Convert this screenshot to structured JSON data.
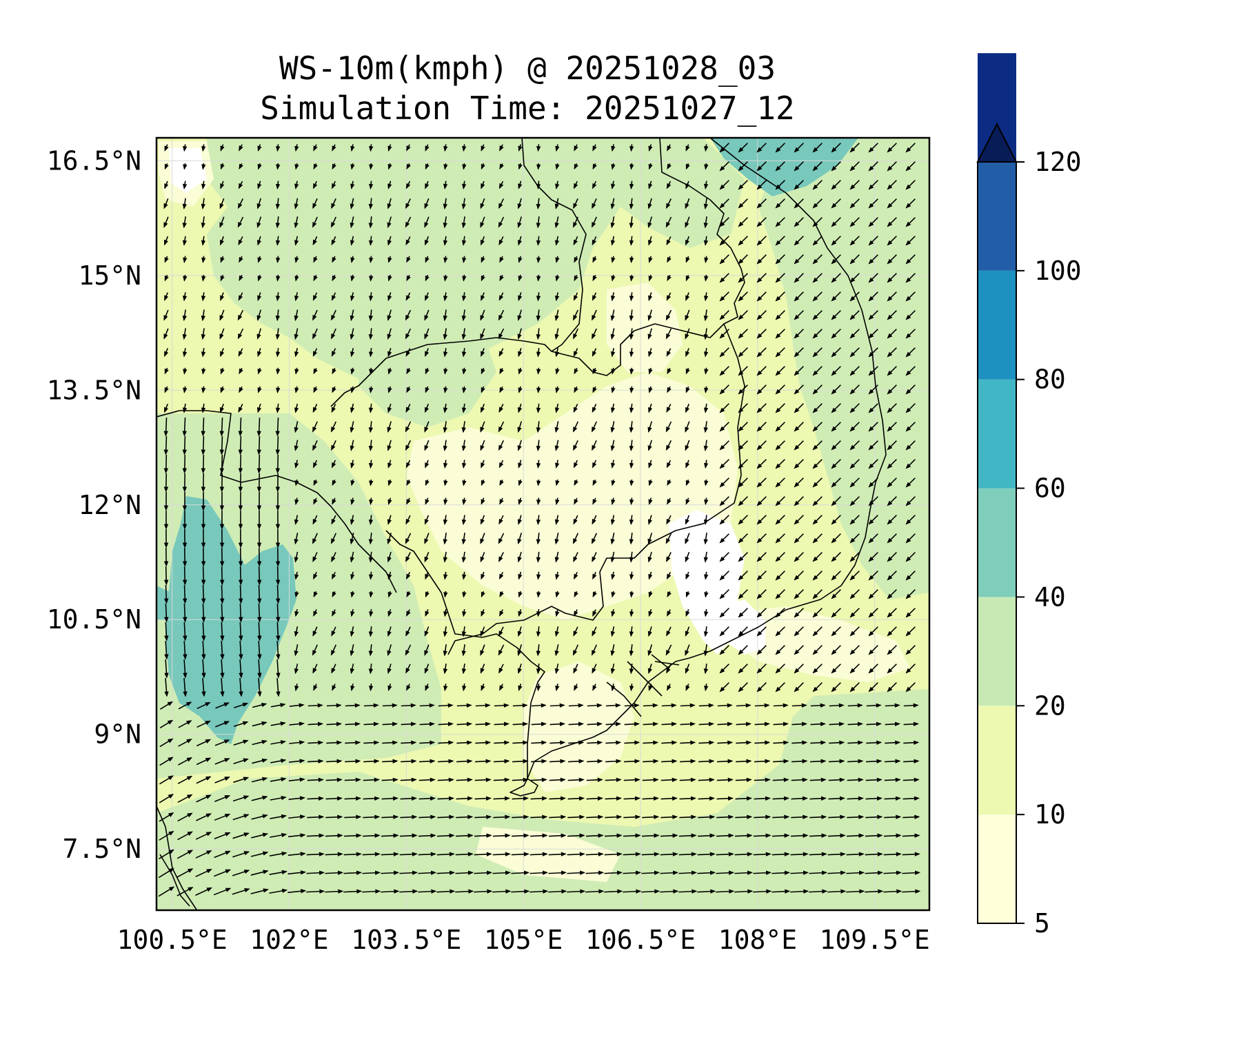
{
  "title": {
    "line1": "WS-10m(kmph) @ 20251028_03",
    "line2": "Simulation Time: 20251027_12"
  },
  "map": {
    "lon_range": [
      100.3,
      110.2
    ],
    "lat_range": [
      6.7,
      16.8
    ],
    "lon_ticks": [
      "100.5°E",
      "102°E",
      "103.5°E",
      "105°E",
      "106.5°E",
      "108°E",
      "109.5°E"
    ],
    "lon_tick_values": [
      100.5,
      102,
      103.5,
      105,
      106.5,
      108,
      109.5
    ],
    "lat_ticks": [
      "16.5°N",
      "15°N",
      "13.5°N",
      "12°N",
      "10.5°N",
      "9°N",
      "7.5°N"
    ],
    "lat_tick_values": [
      16.5,
      15,
      13.5,
      12,
      10.5,
      9,
      7.5
    ],
    "gridlines": true
  },
  "colorbar": {
    "levels": [
      "5",
      "10",
      "20",
      "40",
      "60",
      "80",
      "100",
      "120"
    ],
    "colors": [
      "#ffffd9",
      "#edf8b1",
      "#c7e9b4",
      "#7fcdbb",
      "#41b6c4",
      "#1d91c0",
      "#225ea8",
      "#0c2c84"
    ],
    "extend_color": "#081d58",
    "extend": "max"
  },
  "colors": {
    "speed_10_20": "#edf8b1",
    "speed_20_40": "#cfecb5",
    "speed_40_60": "#78c8bb",
    "speed_5_10": "#fbfdd6"
  }
}
